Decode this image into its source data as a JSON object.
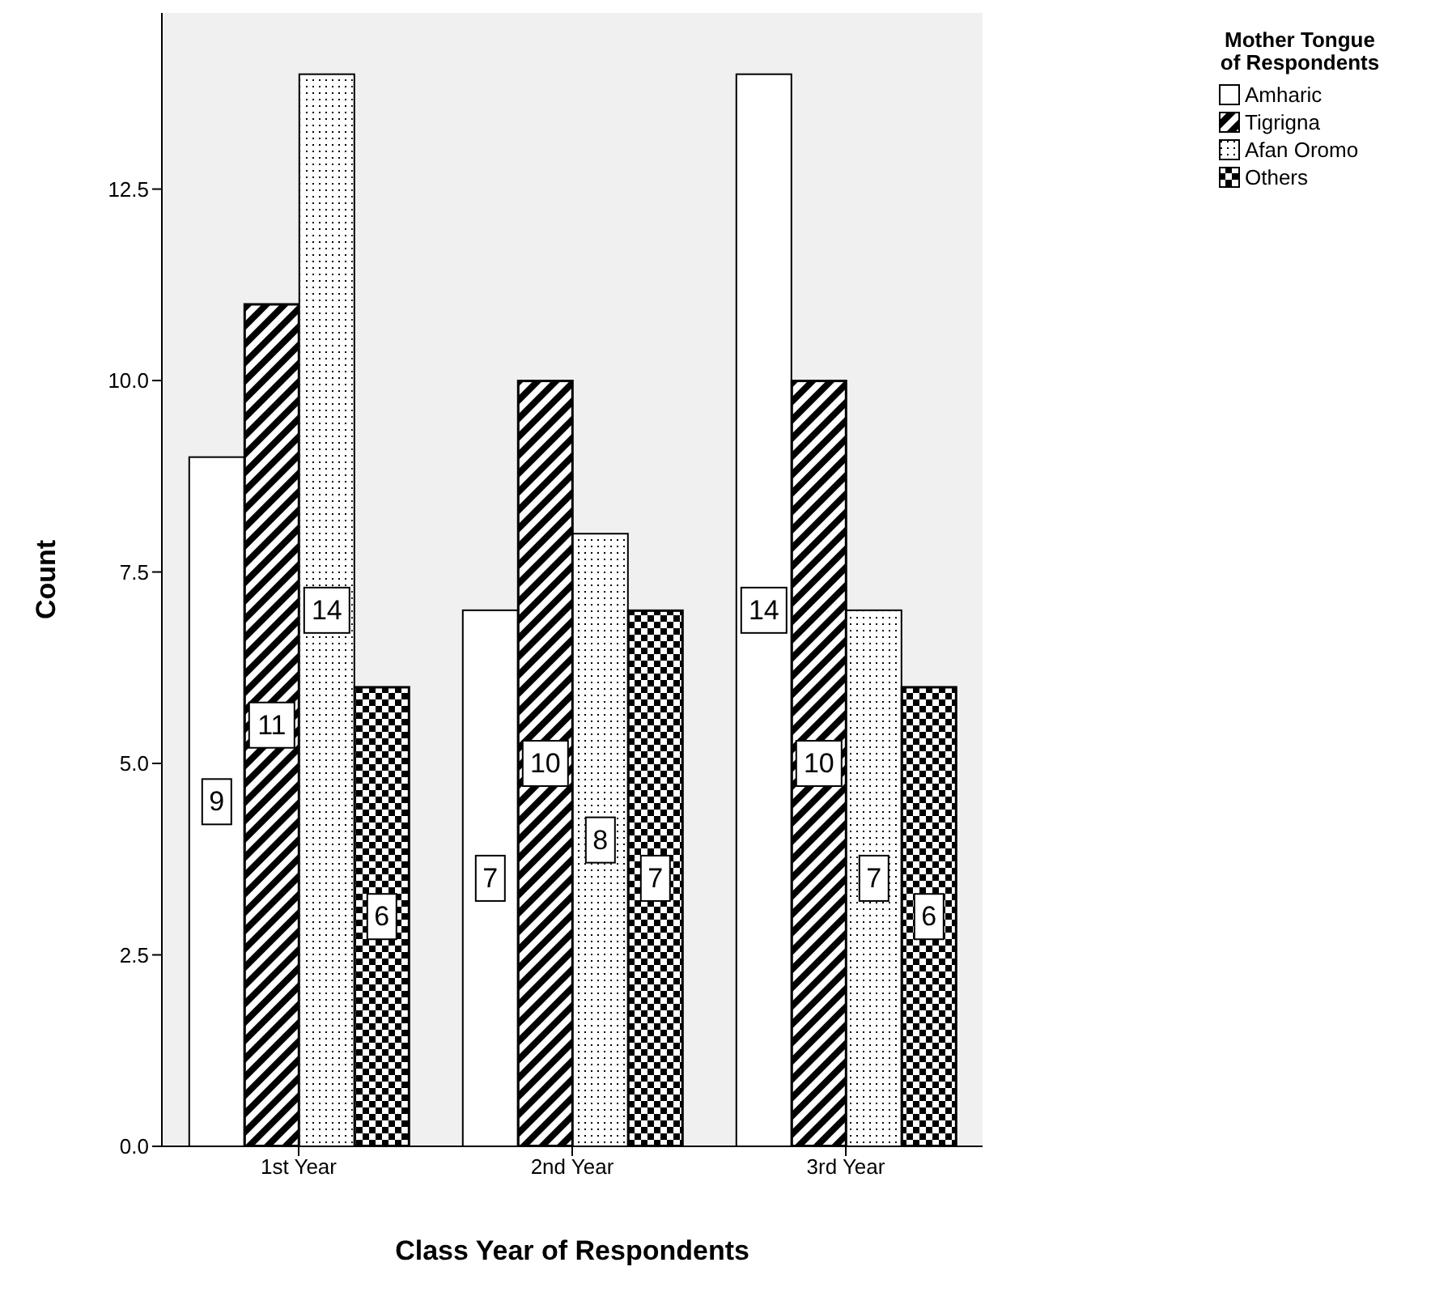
{
  "chart_data": {
    "type": "bar",
    "xlabel": "Class Year of Respondents",
    "ylabel": "Count",
    "legend_title": "Mother Tongue of Respondents",
    "categories": [
      "1st Year",
      "2nd Year",
      "3rd Year"
    ],
    "series": [
      {
        "name": "Amharic",
        "color": "#ffffff",
        "values": [
          9,
          7,
          14
        ]
      },
      {
        "name": "Tigrigna",
        "color": "#000000",
        "values": [
          11,
          10,
          10
        ]
      },
      {
        "name": "Afan Oromo",
        "color": "#ffffff",
        "values": [
          14,
          8,
          7
        ]
      },
      {
        "name": "Others",
        "color": "#000000",
        "values": [
          6,
          7,
          6
        ]
      }
    ],
    "ylim": [
      0,
      14.8
    ],
    "yticks": [
      {
        "value": 0,
        "label": "0.0"
      },
      {
        "value": 2.5,
        "label": "2.5"
      },
      {
        "value": 5,
        "label": "5.0"
      },
      {
        "value": 7.5,
        "label": "7.5"
      },
      {
        "value": 10,
        "label": "10.0"
      },
      {
        "value": 12.5,
        "label": "12.5"
      }
    ],
    "grid": false,
    "legend": "top right",
    "data_labels": true
  }
}
